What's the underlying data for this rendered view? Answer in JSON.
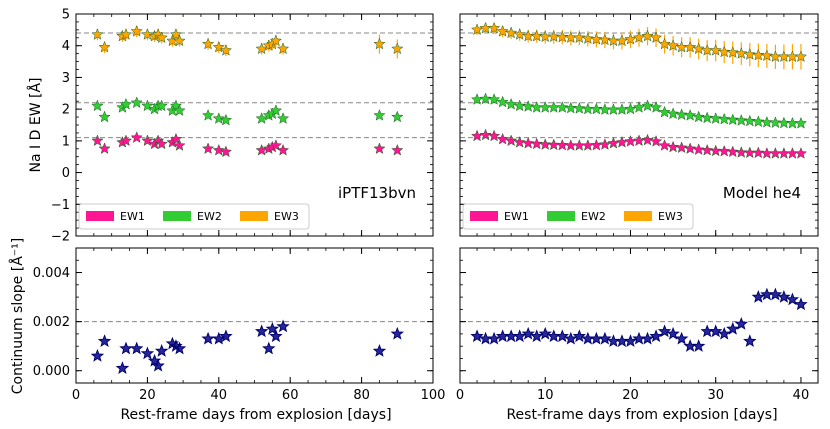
{
  "chart_data": [
    {
      "type": "scatter",
      "panel": "top-left",
      "annotation": "iPTF13bvn",
      "ylabel": "Na I D EW [Å]",
      "xlabel": "",
      "xlim": [
        0,
        100
      ],
      "ylim": [
        -2,
        5
      ],
      "xticks": [
        "0",
        "20",
        "40",
        "60",
        "80",
        "100"
      ],
      "yticks": [
        "−2",
        "−1",
        "0",
        "1",
        "2",
        "3",
        "4",
        "5"
      ],
      "reference_lines": [
        1.1,
        2.2,
        4.4
      ],
      "legend": [
        "EW1",
        "EW2",
        "EW3"
      ],
      "legend_position": "bottom-left",
      "x": [
        6,
        8,
        13,
        14,
        17,
        20,
        22,
        23,
        24,
        27,
        28,
        29,
        37,
        40,
        42,
        52,
        54,
        55,
        56,
        58,
        85,
        90
      ],
      "series": [
        {
          "name": "EW1",
          "color": "#ff1493",
          "values": [
            1.0,
            0.75,
            0.95,
            1.0,
            1.1,
            1.0,
            0.9,
            1.0,
            0.9,
            0.95,
            1.05,
            0.85,
            0.75,
            0.7,
            0.65,
            0.7,
            0.75,
            0.8,
            0.85,
            0.7,
            0.75,
            0.7
          ]
        },
        {
          "name": "EW2",
          "color": "#32cd32",
          "values": [
            2.1,
            1.75,
            2.05,
            2.15,
            2.2,
            2.1,
            2.0,
            2.1,
            2.1,
            1.95,
            2.1,
            1.95,
            1.8,
            1.7,
            1.65,
            1.7,
            1.8,
            1.85,
            1.95,
            1.7,
            1.8,
            1.75
          ]
        },
        {
          "name": "EW3",
          "color": "#ffa500",
          "values": [
            4.35,
            3.95,
            4.3,
            4.35,
            4.45,
            4.35,
            4.3,
            4.35,
            4.25,
            4.15,
            4.35,
            4.15,
            4.05,
            3.95,
            3.85,
            3.9,
            4.0,
            4.05,
            4.15,
            3.9,
            4.05,
            3.9
          ]
        }
      ]
    },
    {
      "type": "scatter",
      "panel": "top-right",
      "annotation": "Model he4",
      "xlabel": "",
      "xlim": [
        0,
        42
      ],
      "ylim": [
        -2,
        5
      ],
      "reference_lines": [
        1.1,
        2.2,
        4.4
      ],
      "legend": [
        "EW1",
        "EW2",
        "EW3"
      ],
      "legend_position": "bottom-left",
      "x": [
        2,
        3,
        4,
        5,
        6,
        7,
        8,
        9,
        10,
        11,
        12,
        13,
        14,
        15,
        16,
        17,
        18,
        19,
        20,
        21,
        22,
        23,
        24,
        25,
        26,
        27,
        28,
        29,
        30,
        31,
        32,
        33,
        34,
        35,
        36,
        37,
        38,
        39,
        40
      ],
      "series": [
        {
          "name": "EW1",
          "color": "#ff1493",
          "values": [
            1.15,
            1.18,
            1.15,
            1.05,
            1.0,
            0.95,
            0.92,
            0.9,
            0.88,
            0.87,
            0.86,
            0.85,
            0.85,
            0.85,
            0.86,
            0.88,
            0.92,
            0.95,
            0.98,
            1.0,
            1.02,
            0.98,
            0.85,
            0.8,
            0.78,
            0.75,
            0.72,
            0.7,
            0.68,
            0.67,
            0.65,
            0.63,
            0.62,
            0.62,
            0.6,
            0.6,
            0.6,
            0.6,
            0.6
          ]
        },
        {
          "name": "EW2",
          "color": "#32cd32",
          "values": [
            2.3,
            2.32,
            2.3,
            2.22,
            2.15,
            2.1,
            2.08,
            2.05,
            2.05,
            2.05,
            2.05,
            2.03,
            2.02,
            2.0,
            2.0,
            1.98,
            1.98,
            1.98,
            2.0,
            2.05,
            2.1,
            2.05,
            1.9,
            1.85,
            1.82,
            1.8,
            1.75,
            1.72,
            1.7,
            1.68,
            1.66,
            1.64,
            1.62,
            1.6,
            1.58,
            1.57,
            1.56,
            1.55,
            1.55
          ]
        },
        {
          "name": "EW3",
          "color": "#ffa500",
          "values": [
            4.5,
            4.55,
            4.55,
            4.45,
            4.4,
            4.35,
            4.3,
            4.3,
            4.28,
            4.28,
            4.27,
            4.25,
            4.25,
            4.22,
            4.2,
            4.18,
            4.15,
            4.15,
            4.2,
            4.25,
            4.3,
            4.25,
            4.05,
            4.0,
            3.95,
            3.95,
            3.9,
            3.85,
            3.85,
            3.8,
            3.78,
            3.75,
            3.72,
            3.7,
            3.68,
            3.65,
            3.65,
            3.65,
            3.65
          ]
        }
      ]
    },
    {
      "type": "scatter",
      "panel": "bottom-left",
      "ylabel": "Continuum slope [Å⁻¹]",
      "xlabel": "Rest-frame days from explosion [days]",
      "xlim": [
        0,
        100
      ],
      "ylim": [
        -0.0005,
        0.005
      ],
      "xticks": [
        "0",
        "20",
        "40",
        "60",
        "80",
        "100"
      ],
      "yticks": [
        "0.000",
        "0.002",
        "0.004"
      ],
      "reference_lines": [
        0.002
      ],
      "x": [
        6,
        8,
        13,
        14,
        17,
        20,
        22,
        23,
        24,
        27,
        28,
        29,
        37,
        40,
        42,
        52,
        54,
        55,
        56,
        58,
        85,
        90
      ],
      "series": [
        {
          "name": "slope",
          "color": "#00008b",
          "values": [
            0.0006,
            0.0012,
            0.0001,
            0.0009,
            0.0009,
            0.0007,
            0.0004,
            0.0002,
            0.0008,
            0.0011,
            0.001,
            0.0009,
            0.0013,
            0.0013,
            0.0014,
            0.0016,
            0.0009,
            0.0017,
            0.0014,
            0.0018,
            0.0008,
            0.0015
          ]
        }
      ]
    },
    {
      "type": "scatter",
      "panel": "bottom-right",
      "xlabel": "Rest-frame days from explosion [days]",
      "xlim": [
        0,
        42
      ],
      "ylim": [
        -0.0005,
        0.005
      ],
      "xticks": [
        "0",
        "10",
        "20",
        "30",
        "40"
      ],
      "reference_lines": [
        0.002
      ],
      "x": [
        2,
        3,
        4,
        5,
        6,
        7,
        8,
        9,
        10,
        11,
        12,
        13,
        14,
        15,
        16,
        17,
        18,
        19,
        20,
        21,
        22,
        23,
        24,
        25,
        26,
        27,
        28,
        29,
        30,
        31,
        32,
        33,
        34,
        35,
        36,
        37,
        38,
        39,
        40
      ],
      "series": [
        {
          "name": "slope",
          "color": "#00008b",
          "values": [
            0.0014,
            0.0013,
            0.0013,
            0.0014,
            0.0014,
            0.0014,
            0.0015,
            0.0014,
            0.0015,
            0.0014,
            0.0014,
            0.0013,
            0.0014,
            0.0013,
            0.0013,
            0.0013,
            0.0012,
            0.0012,
            0.0012,
            0.0013,
            0.0013,
            0.0014,
            0.0016,
            0.0015,
            0.0013,
            0.001,
            0.001,
            0.0016,
            0.0016,
            0.0015,
            0.0017,
            0.0019,
            0.0012,
            0.003,
            0.0031,
            0.0031,
            0.003,
            0.0029,
            0.0027
          ]
        }
      ]
    }
  ]
}
